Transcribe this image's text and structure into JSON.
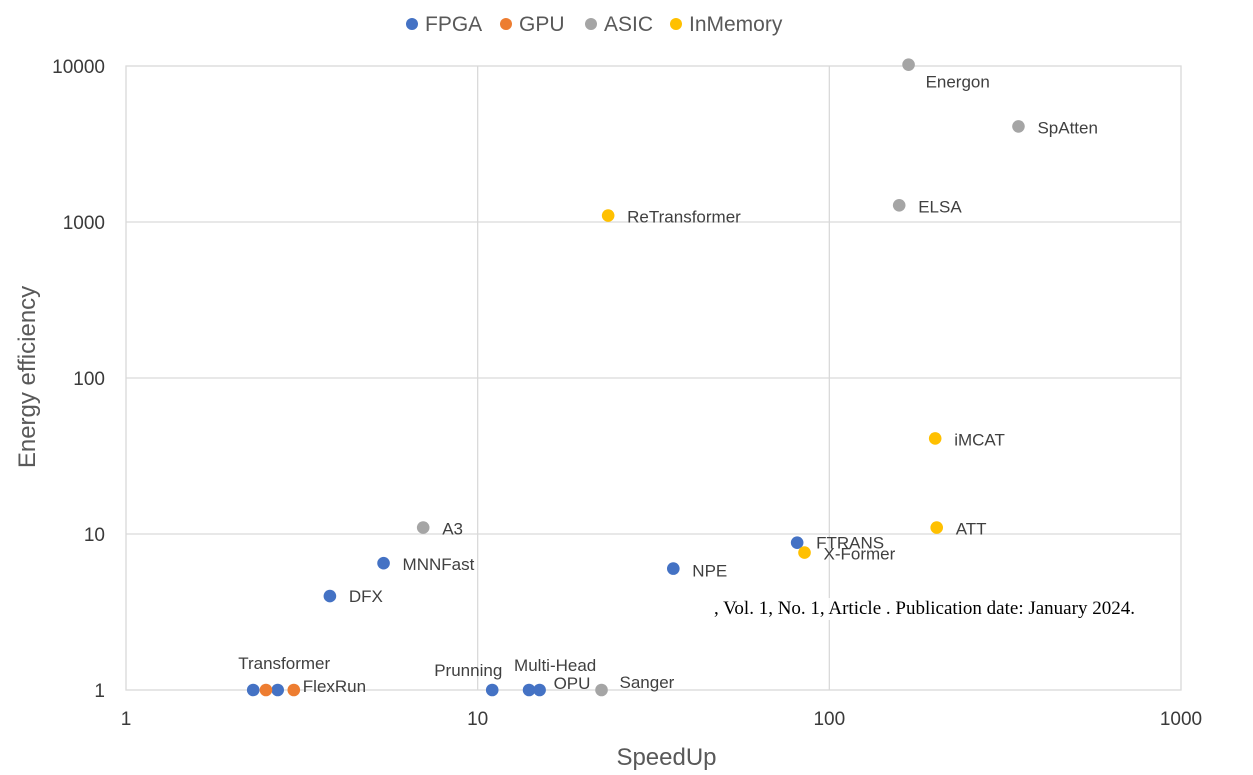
{
  "chart_data": {
    "type": "scatter",
    "xlabel": "SpeedUp",
    "ylabel": "Energy efficiency",
    "xscale": "log",
    "yscale": "log",
    "xlim": [
      1,
      1000
    ],
    "ylim": [
      1,
      10000
    ],
    "x_ticks": [
      "1",
      "10",
      "100",
      "1000"
    ],
    "y_ticks": [
      "1",
      "10",
      "100",
      "1000",
      "10000"
    ],
    "grid": true,
    "legend_position": "top",
    "series": [
      {
        "name": "FPGA",
        "color": "#4472C4",
        "points": [
          {
            "x": 2.3,
            "y": 1,
            "label": "Transformer"
          },
          {
            "x": 2.7,
            "y": 1,
            "label": ""
          },
          {
            "x": 3.8,
            "y": 4,
            "label": "DFX"
          },
          {
            "x": 5.4,
            "y": 6.5,
            "label": "MNNFast"
          },
          {
            "x": 11,
            "y": 1,
            "label": "Prunning"
          },
          {
            "x": 14,
            "y": 1,
            "label": "Multi-Head"
          },
          {
            "x": 15,
            "y": 1,
            "label": "OPU"
          },
          {
            "x": 36,
            "y": 6,
            "label": "NPE"
          },
          {
            "x": 81,
            "y": 8.8,
            "label": "FTRANS"
          }
        ]
      },
      {
        "name": "GPU",
        "color": "#ED7D31",
        "points": [
          {
            "x": 2.5,
            "y": 1,
            "label": ""
          },
          {
            "x": 3.0,
            "y": 1,
            "label": "FlexRun"
          }
        ]
      },
      {
        "name": "ASIC",
        "color": "#A5A5A5",
        "points": [
          {
            "x": 7,
            "y": 11,
            "label": "A3"
          },
          {
            "x": 22.5,
            "y": 1,
            "label": "Sanger"
          },
          {
            "x": 158,
            "y": 1280,
            "label": "ELSA"
          },
          {
            "x": 168,
            "y": 10200,
            "label": "Energon"
          },
          {
            "x": 345,
            "y": 4100,
            "label": "SpAtten"
          }
        ]
      },
      {
        "name": "InMemory",
        "color": "#FFC000",
        "points": [
          {
            "x": 23.5,
            "y": 1100,
            "label": "ReTransformer"
          },
          {
            "x": 85,
            "y": 7.6,
            "label": "X-Former"
          },
          {
            "x": 200,
            "y": 41,
            "label": "iMCAT"
          },
          {
            "x": 202,
            "y": 11,
            "label": "ATT"
          }
        ]
      }
    ]
  },
  "footer_note": ", Vol. 1, No. 1, Article . Publication date: January 2024."
}
